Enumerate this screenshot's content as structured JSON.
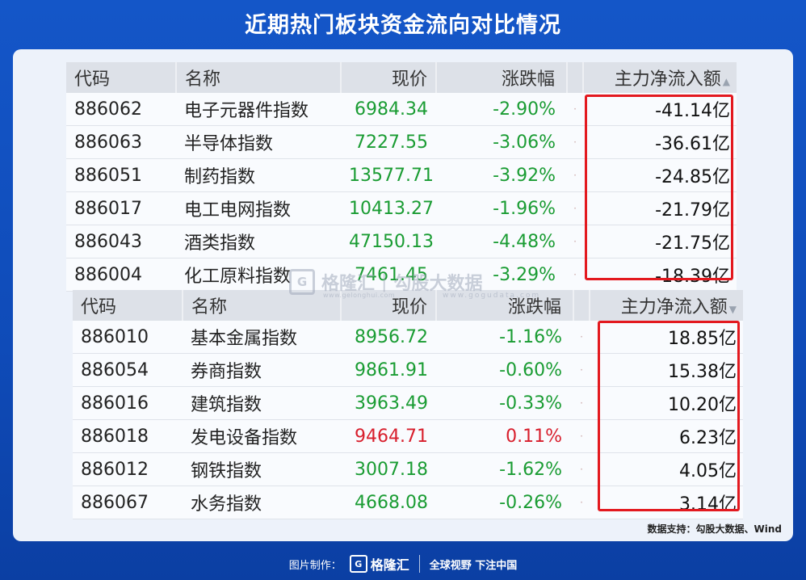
{
  "title": "近期热门板块资金流向对比情况",
  "headers": {
    "code": "代码",
    "name": "名称",
    "price": "现价",
    "change": "涨跌幅",
    "flow": "主力净流入额"
  },
  "table_outflow": [
    {
      "code": "886062",
      "name": "电子元器件指数",
      "price": "6984.34",
      "change": "-2.90%",
      "flow": "-41.14亿"
    },
    {
      "code": "886063",
      "name": "半导体指数",
      "price": "7227.55",
      "change": "-3.06%",
      "flow": "-36.61亿"
    },
    {
      "code": "886051",
      "name": "制药指数",
      "price": "13577.71",
      "change": "-3.92%",
      "flow": "-24.85亿"
    },
    {
      "code": "886017",
      "name": "电工电网指数",
      "price": "10413.27",
      "change": "-1.96%",
      "flow": "-21.79亿"
    },
    {
      "code": "886043",
      "name": "酒类指数",
      "price": "47150.13",
      "change": "-4.48%",
      "flow": "-21.75亿"
    },
    {
      "code": "886004",
      "name": "化工原料指数",
      "price": "7461.45",
      "change": "-3.29%",
      "flow": "-18.39亿"
    }
  ],
  "table_inflow": [
    {
      "code": "886010",
      "name": "基本金属指数",
      "price": "8956.72",
      "change": "-1.16%",
      "flow": "18.85亿"
    },
    {
      "code": "886054",
      "name": "券商指数",
      "price": "9861.91",
      "change": "-0.60%",
      "flow": "15.38亿"
    },
    {
      "code": "886016",
      "name": "建筑指数",
      "price": "3963.49",
      "change": "-0.33%",
      "flow": "10.20亿"
    },
    {
      "code": "886018",
      "name": "发电设备指数",
      "price": "9464.71",
      "change": "0.11%",
      "flow": "6.23亿"
    },
    {
      "code": "886012",
      "name": "钢铁指数",
      "price": "3007.18",
      "change": "-1.62%",
      "flow": "4.05亿"
    },
    {
      "code": "886067",
      "name": "水务指数",
      "price": "4668.08",
      "change": "-0.26%",
      "flow": "3.14亿"
    }
  ],
  "watermark": {
    "brand": "格隆汇",
    "brand_url": "www.gelonghui.com",
    "partner": "勾股大数据",
    "partner_url": "www.gogudata.com"
  },
  "source": "数据支持：勾股大数据、Wind",
  "footer": {
    "label": "图片制作：",
    "brand": "格隆汇",
    "slogan": "全球视野 下注中国"
  },
  "colors": {
    "up": "#d81e2c",
    "down": "#1a9c33",
    "highlight": "#e3191f",
    "background": "#1456c8"
  },
  "icons": {
    "sort_up": "triangle-up-icon",
    "sort_down": "triangle-down-icon",
    "logo": "gelonghui-logo-icon"
  }
}
